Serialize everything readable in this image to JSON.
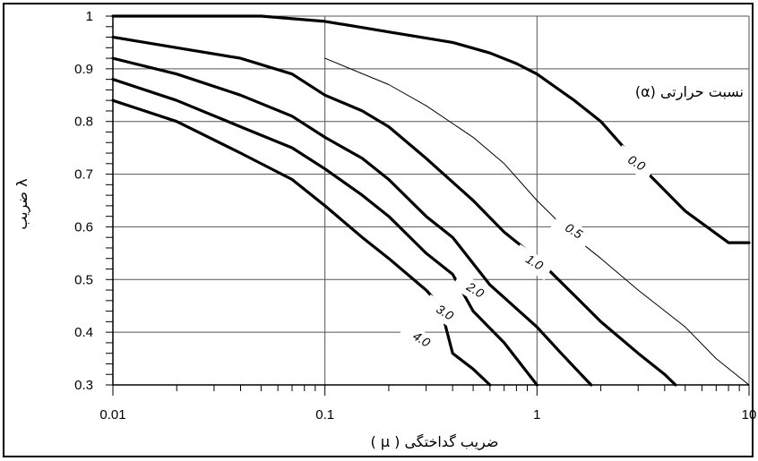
{
  "chart_data": {
    "type": "line",
    "xlabel": "( μ ) ضریب گداختگی",
    "ylabel": "ضریب λ",
    "legend_title": "(α) نسبت حرارتی",
    "x_scale": "log",
    "xlim": [
      0.01,
      10
    ],
    "ylim": [
      0.3,
      1.0
    ],
    "grid": true,
    "x_ticks": [
      "0.01",
      "0.1",
      "1",
      "10"
    ],
    "y_ticks": [
      "1",
      "0.9",
      "0.8",
      "0.7",
      "0.6",
      "0.5",
      "0.4",
      "0.3"
    ],
    "series": [
      {
        "name": "0.0",
        "label": "0.0",
        "weight": "bold",
        "points": [
          [
            0.01,
            1.0
          ],
          [
            0.05,
            1.0
          ],
          [
            0.1,
            0.99
          ],
          [
            0.2,
            0.97
          ],
          [
            0.4,
            0.95
          ],
          [
            0.6,
            0.93
          ],
          [
            0.8,
            0.91
          ],
          [
            1.0,
            0.89
          ],
          [
            1.5,
            0.84
          ],
          [
            2.0,
            0.8
          ],
          [
            3.0,
            0.72
          ],
          [
            5.0,
            0.63
          ],
          [
            8.0,
            0.57
          ],
          [
            10.0,
            0.57
          ]
        ]
      },
      {
        "name": "0.5",
        "label": "0.5",
        "weight": "thin",
        "points": [
          [
            0.1,
            0.92
          ],
          [
            0.2,
            0.87
          ],
          [
            0.3,
            0.83
          ],
          [
            0.5,
            0.77
          ],
          [
            0.7,
            0.72
          ],
          [
            1.0,
            0.65
          ],
          [
            1.5,
            0.58
          ],
          [
            2.0,
            0.54
          ],
          [
            3.0,
            0.48
          ],
          [
            5.0,
            0.41
          ],
          [
            7.0,
            0.35
          ],
          [
            10.0,
            0.3
          ]
        ]
      },
      {
        "name": "1.0",
        "label": "1.0",
        "weight": "bold",
        "points": [
          [
            0.01,
            0.96
          ],
          [
            0.02,
            0.94
          ],
          [
            0.04,
            0.92
          ],
          [
            0.07,
            0.89
          ],
          [
            0.1,
            0.85
          ],
          [
            0.15,
            0.82
          ],
          [
            0.2,
            0.79
          ],
          [
            0.3,
            0.73
          ],
          [
            0.5,
            0.65
          ],
          [
            0.7,
            0.59
          ],
          [
            1.0,
            0.54
          ],
          [
            1.5,
            0.47
          ],
          [
            2.0,
            0.42
          ],
          [
            3.0,
            0.36
          ],
          [
            4.0,
            0.32
          ],
          [
            4.5,
            0.3
          ]
        ]
      },
      {
        "name": "2.0",
        "label": "2.0",
        "weight": "bold",
        "points": [
          [
            0.01,
            0.92
          ],
          [
            0.02,
            0.89
          ],
          [
            0.04,
            0.85
          ],
          [
            0.07,
            0.81
          ],
          [
            0.1,
            0.77
          ],
          [
            0.15,
            0.73
          ],
          [
            0.2,
            0.69
          ],
          [
            0.3,
            0.62
          ],
          [
            0.4,
            0.58
          ],
          [
            0.6,
            0.49
          ],
          [
            1.0,
            0.41
          ],
          [
            1.3,
            0.36
          ],
          [
            1.8,
            0.3
          ]
        ]
      },
      {
        "name": "3.0",
        "label": "3.0",
        "weight": "bold",
        "points": [
          [
            0.01,
            0.88
          ],
          [
            0.02,
            0.84
          ],
          [
            0.04,
            0.79
          ],
          [
            0.07,
            0.75
          ],
          [
            0.1,
            0.71
          ],
          [
            0.15,
            0.66
          ],
          [
            0.2,
            0.62
          ],
          [
            0.3,
            0.55
          ],
          [
            0.4,
            0.51
          ],
          [
            0.5,
            0.44
          ],
          [
            0.7,
            0.38
          ],
          [
            1.0,
            0.3
          ]
        ]
      },
      {
        "name": "4.0",
        "label": "4.0",
        "weight": "bold",
        "points": [
          [
            0.01,
            0.84
          ],
          [
            0.02,
            0.8
          ],
          [
            0.04,
            0.74
          ],
          [
            0.07,
            0.69
          ],
          [
            0.1,
            0.64
          ],
          [
            0.15,
            0.58
          ],
          [
            0.2,
            0.54
          ],
          [
            0.3,
            0.48
          ],
          [
            0.35,
            0.45
          ],
          [
            0.4,
            0.36
          ],
          [
            0.5,
            0.33
          ],
          [
            0.6,
            0.3
          ]
        ]
      }
    ]
  }
}
